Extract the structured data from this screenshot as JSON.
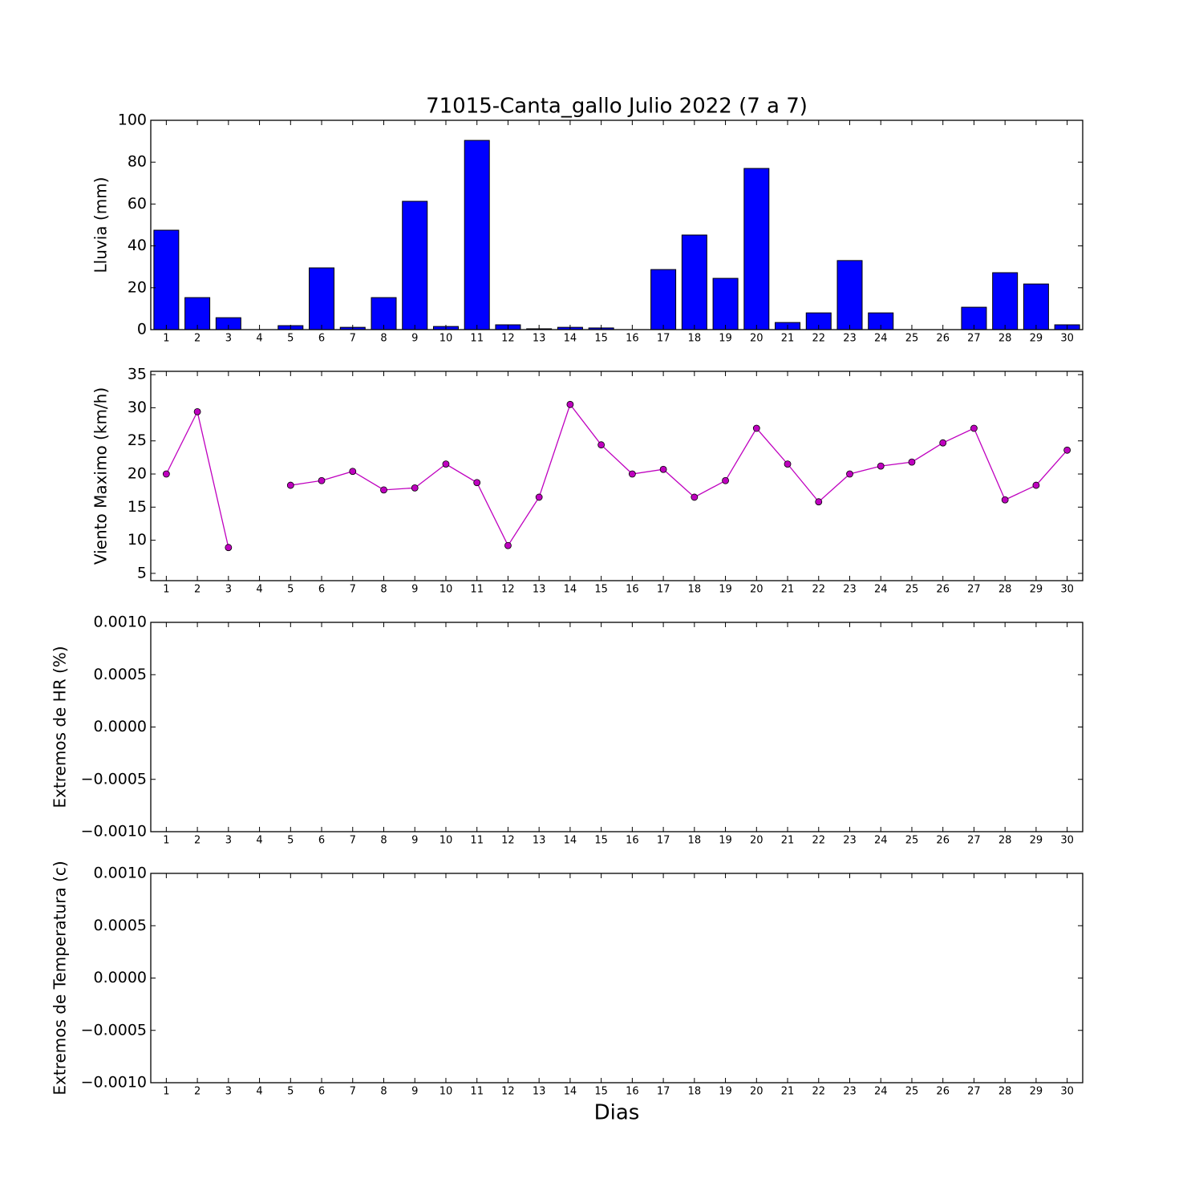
{
  "chart_data": [
    {
      "type": "bar",
      "title": "71015-Canta_gallo Julio 2022  (7 a 7)",
      "ylabel": "Lluvia (mm)",
      "x": [
        1,
        2,
        3,
        4,
        5,
        6,
        7,
        8,
        9,
        10,
        11,
        12,
        13,
        14,
        15,
        16,
        17,
        18,
        19,
        20,
        21,
        22,
        23,
        24,
        25,
        26,
        27,
        28,
        29,
        30
      ],
      "values": [
        47.5,
        15.3,
        5.7,
        0,
        1.9,
        29.5,
        1.1,
        15.3,
        61.3,
        1.5,
        90.4,
        2.3,
        0.4,
        1.1,
        0.8,
        0,
        28.7,
        45.2,
        24.5,
        77.0,
        3.4,
        8.0,
        33.0,
        8.0,
        0,
        0,
        10.7,
        27.2,
        21.8,
        2.3
      ],
      "color": "#0000ff",
      "xlim": [
        0.5,
        30.5
      ],
      "xticks": [
        1,
        2,
        3,
        4,
        5,
        6,
        7,
        8,
        9,
        10,
        11,
        12,
        13,
        14,
        15,
        16,
        17,
        18,
        19,
        20,
        21,
        22,
        23,
        24,
        25,
        26,
        27,
        28,
        29,
        30
      ],
      "ylim": [
        0,
        100
      ],
      "yticks": [
        0,
        20,
        40,
        60,
        80,
        100
      ]
    },
    {
      "type": "line",
      "ylabel": "Viento Maximo (km/h)",
      "x": [
        1,
        2,
        3,
        4,
        5,
        6,
        7,
        8,
        9,
        10,
        11,
        12,
        13,
        14,
        15,
        16,
        17,
        18,
        19,
        20,
        21,
        22,
        23,
        24,
        25,
        26,
        27,
        28,
        29,
        30
      ],
      "values": [
        20.0,
        29.4,
        8.9,
        null,
        18.3,
        19.0,
        20.4,
        17.6,
        17.9,
        21.5,
        18.7,
        9.2,
        16.5,
        30.5,
        24.4,
        20.0,
        20.7,
        16.5,
        19.0,
        26.9,
        21.5,
        15.8,
        20.0,
        21.2,
        21.8,
        24.7,
        26.9,
        16.1,
        18.3,
        23.6
      ],
      "color": "#bf00bf",
      "xlim": [
        0.5,
        30.5
      ],
      "xticks": [
        1,
        2,
        3,
        4,
        5,
        6,
        7,
        8,
        9,
        10,
        11,
        12,
        13,
        14,
        15,
        16,
        17,
        18,
        19,
        20,
        21,
        22,
        23,
        24,
        25,
        26,
        27,
        28,
        29,
        30
      ],
      "ylim": [
        3.9,
        35.5
      ],
      "yticks": [
        5,
        10,
        15,
        20,
        25,
        30,
        35
      ]
    },
    {
      "type": "line",
      "ylabel": "Extremos de HR (%)",
      "xlim": [
        0.5,
        30.5
      ],
      "xticks": [
        1,
        2,
        3,
        4,
        5,
        6,
        7,
        8,
        9,
        10,
        11,
        12,
        13,
        14,
        15,
        16,
        17,
        18,
        19,
        20,
        21,
        22,
        23,
        24,
        25,
        26,
        27,
        28,
        29,
        30
      ],
      "ylim": [
        -0.001,
        0.001
      ],
      "yticks": [
        {
          "value": -0.001,
          "label": "−0.0010"
        },
        {
          "value": -0.0005,
          "label": "−0.0005"
        },
        {
          "value": 0,
          "label": "0.0000"
        },
        {
          "value": 0.0005,
          "label": "0.0005"
        },
        {
          "value": 0.001,
          "label": "0.0010"
        }
      ]
    },
    {
      "type": "line",
      "ylabel": "Extremos de Temperatura (c)",
      "xlabel": "Dias",
      "xlim": [
        0.5,
        30.5
      ],
      "xticks": [
        1,
        2,
        3,
        4,
        5,
        6,
        7,
        8,
        9,
        10,
        11,
        12,
        13,
        14,
        15,
        16,
        17,
        18,
        19,
        20,
        21,
        22,
        23,
        24,
        25,
        26,
        27,
        28,
        29,
        30
      ],
      "ylim": [
        -0.001,
        0.001
      ],
      "yticks": [
        {
          "value": -0.001,
          "label": "−0.0010"
        },
        {
          "value": -0.0005,
          "label": "−0.0005"
        },
        {
          "value": 0,
          "label": "0.0000"
        },
        {
          "value": 0.0005,
          "label": "0.0005"
        },
        {
          "value": 0.001,
          "label": "0.0010"
        }
      ]
    }
  ]
}
